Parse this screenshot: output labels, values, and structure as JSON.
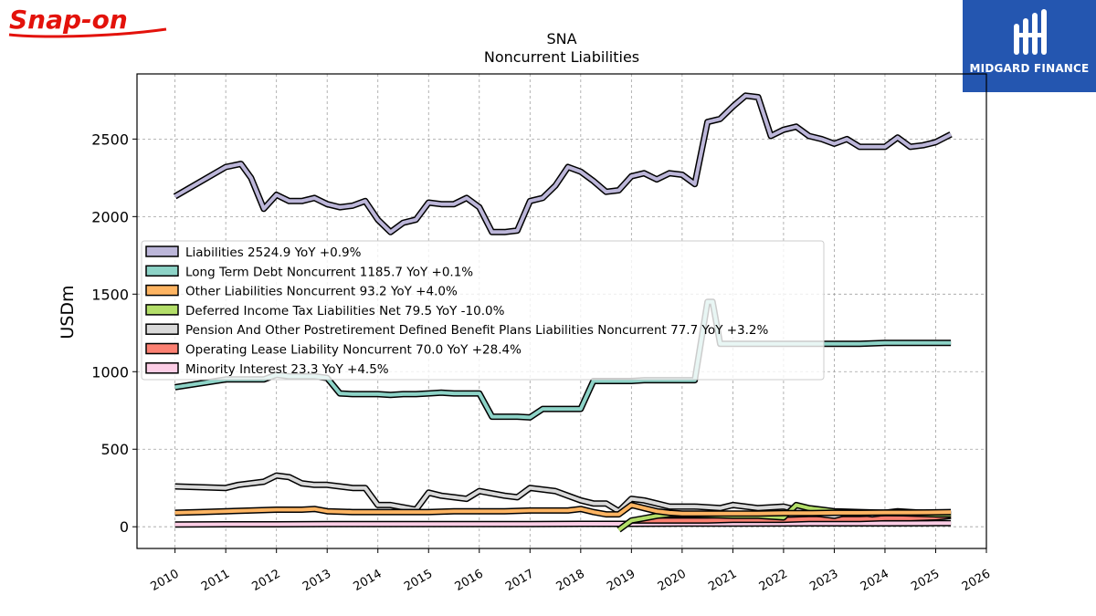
{
  "brand": {
    "logo_text": "Snap-on",
    "logo_color": "#e3120b"
  },
  "publisher": {
    "name": "MIDGARD FINANCE",
    "bg_color": "#2456b0"
  },
  "chart_data": {
    "type": "line",
    "title": "SNA",
    "subtitle": "Noncurrent  Liabilities",
    "xlabel": "",
    "ylabel": "USDm",
    "xlim": [
      2009.25,
      2026.0
    ],
    "ylim": [
      -140,
      2920
    ],
    "xticks": [
      "2010",
      "2011",
      "2012",
      "2013",
      "2014",
      "2015",
      "2016",
      "2017",
      "2018",
      "2019",
      "2020",
      "2021",
      "2022",
      "2023",
      "2024",
      "2025",
      "2026"
    ],
    "yticks": [
      "0",
      "500",
      "1000",
      "1500",
      "2000",
      "2500"
    ],
    "grid": true,
    "legend_position": "center-left",
    "series": [
      {
        "name": "Liabilities",
        "legend": "Liabilities  2524.9 YoY +0.9%",
        "color": "#bcb6d9",
        "x": [
          2010.0,
          2011.0,
          2011.3,
          2011.5,
          2011.75,
          2012.0,
          2012.25,
          2012.5,
          2012.75,
          2013.0,
          2013.25,
          2013.5,
          2013.75,
          2014.0,
          2014.25,
          2014.5,
          2014.75,
          2015.0,
          2015.25,
          2015.5,
          2015.75,
          2016.0,
          2016.25,
          2016.5,
          2016.75,
          2017.0,
          2017.25,
          2017.5,
          2017.75,
          2018.0,
          2018.25,
          2018.5,
          2018.75,
          2019.0,
          2019.25,
          2019.5,
          2019.75,
          2020.0,
          2020.25,
          2020.5,
          2020.75,
          2021.0,
          2021.25,
          2021.5,
          2021.75,
          2022.0,
          2022.25,
          2022.5,
          2022.75,
          2023.0,
          2023.25,
          2023.5,
          2023.75,
          2024.0,
          2024.25,
          2024.5,
          2024.75,
          2025.0,
          2025.3
        ],
        "y": [
          2130,
          2320,
          2340,
          2250,
          2050,
          2140,
          2100,
          2100,
          2120,
          2080,
          2060,
          2070,
          2100,
          1980,
          1900,
          1960,
          1980,
          2090,
          2080,
          2080,
          2120,
          2060,
          1900,
          1900,
          1910,
          2100,
          2120,
          2200,
          2320,
          2290,
          2230,
          2160,
          2170,
          2260,
          2280,
          2240,
          2280,
          2270,
          2210,
          2610,
          2630,
          2710,
          2780,
          2770,
          2520,
          2560,
          2580,
          2520,
          2500,
          2470,
          2500,
          2450,
          2450,
          2450,
          2510,
          2450,
          2460,
          2480,
          2530
        ]
      },
      {
        "name": "Long Term Debt Noncurrent",
        "legend": "Long Term Debt Noncurrent  1185.7 YoY +0.1%",
        "color": "#8dd3c7",
        "x": [
          2010.0,
          2011.0,
          2011.75,
          2012.0,
          2012.25,
          2012.5,
          2012.75,
          2013.0,
          2013.25,
          2013.5,
          2013.75,
          2014.0,
          2014.25,
          2014.5,
          2014.75,
          2015.0,
          2015.25,
          2015.5,
          2015.75,
          2016.0,
          2016.25,
          2016.5,
          2016.75,
          2017.0,
          2017.25,
          2017.5,
          2017.75,
          2018.0,
          2018.25,
          2018.5,
          2018.75,
          2019.0,
          2019.25,
          2019.5,
          2019.75,
          2020.0,
          2020.25,
          2020.5,
          2020.6,
          2020.75,
          2021.0,
          2021.25,
          2021.5,
          2021.75,
          2022.0,
          2022.5,
          2023.0,
          2023.5,
          2024.0,
          2024.5,
          2025.0,
          2025.3
        ],
        "y": [
          900,
          950,
          950,
          980,
          970,
          970,
          970,
          960,
          860,
          855,
          855,
          855,
          850,
          855,
          855,
          860,
          865,
          860,
          860,
          860,
          710,
          710,
          710,
          705,
          760,
          760,
          760,
          760,
          940,
          940,
          940,
          940,
          945,
          945,
          945,
          945,
          945,
          1450,
          1450,
          1180,
          1180,
          1180,
          1180,
          1180,
          1180,
          1180,
          1180,
          1180,
          1185,
          1185,
          1185,
          1186
        ]
      },
      {
        "name": "Other Liabilities Noncurrent",
        "legend": "Other Liabilities Noncurrent  93.2 YoY +4.0%",
        "color": "#fdb462",
        "x": [
          2010.0,
          2010.5,
          2011.0,
          2011.5,
          2012.0,
          2012.5,
          2012.75,
          2013.0,
          2013.5,
          2014.0,
          2014.5,
          2015.0,
          2015.5,
          2016.0,
          2016.5,
          2017.0,
          2017.5,
          2017.75,
          2018.0,
          2018.25,
          2018.5,
          2018.75,
          2019.0,
          2019.25,
          2019.5,
          2019.75,
          2020.0,
          2020.5,
          2021.0,
          2021.5,
          2022.0,
          2022.5,
          2023.0,
          2023.5,
          2024.0,
          2024.5,
          2025.0,
          2025.3
        ],
        "y": [
          90,
          95,
          100,
          105,
          110,
          110,
          115,
          100,
          95,
          95,
          95,
          95,
          100,
          100,
          100,
          105,
          105,
          105,
          115,
          95,
          80,
          80,
          140,
          120,
          100,
          90,
          85,
          85,
          85,
          85,
          88,
          88,
          90,
          90,
          92,
          92,
          93,
          95
        ]
      },
      {
        "name": "Deferred Income Tax Liabilities Net",
        "legend": "Deferred Income Tax Liabilities Net  79.5 YoY -10.0%",
        "color": "#b3de69",
        "x": [
          2018.75,
          2019.0,
          2019.25,
          2019.5,
          2019.75,
          2020.0,
          2020.5,
          2021.0,
          2021.5,
          2022.0,
          2022.25,
          2022.5,
          2022.75,
          2023.0,
          2023.5,
          2024.0,
          2024.5,
          2025.0,
          2025.3
        ],
        "y": [
          -20,
          40,
          55,
          70,
          80,
          80,
          75,
          70,
          70,
          60,
          140,
          120,
          110,
          100,
          95,
          90,
          85,
          80,
          80
        ]
      },
      {
        "name": "Pension And Other Postretirement Defined Benefit Plans Liabilities Noncurrent",
        "legend": "Pension And Other Postretirement Defined Benefit Plans Liabilities Noncurrent  77.7 YoY +3.2%",
        "color": "#d9d9d9",
        "x": [
          2010.0,
          2011.0,
          2011.25,
          2011.75,
          2012.0,
          2012.25,
          2012.5,
          2012.75,
          2013.0,
          2013.25,
          2013.5,
          2013.75,
          2014.0,
          2014.25,
          2014.75,
          2015.0,
          2015.25,
          2015.5,
          2015.75,
          2016.0,
          2016.5,
          2016.75,
          2017.0,
          2017.5,
          2017.75,
          2018.0,
          2018.25,
          2018.5,
          2018.75,
          2019.0,
          2019.25,
          2019.5,
          2019.75,
          2020.0,
          2020.25,
          2020.75,
          2021.0,
          2021.5,
          2022.0,
          2022.5,
          2023.0,
          2023.25,
          2023.5,
          2023.75,
          2024.0,
          2024.25,
          2024.5,
          2024.75,
          2025.0,
          2025.3
        ],
        "y": [
          260,
          250,
          270,
          290,
          330,
          320,
          280,
          270,
          270,
          260,
          250,
          250,
          140,
          140,
          110,
          220,
          200,
          190,
          180,
          230,
          200,
          190,
          250,
          230,
          200,
          170,
          150,
          150,
          100,
          180,
          170,
          150,
          130,
          130,
          130,
          120,
          140,
          120,
          130,
          90,
          70,
          90,
          90,
          80,
          90,
          100,
          95,
          90,
          80,
          78
        ]
      },
      {
        "name": "Operating Lease Liability Noncurrent",
        "legend": "Operating Lease Liability Noncurrent  70.0 YoY +28.4%",
        "color": "#fb8072",
        "x": [
          2019.0,
          2019.5,
          2020.0,
          2020.5,
          2021.0,
          2021.5,
          2022.0,
          2022.5,
          2023.0,
          2023.5,
          2024.0,
          2024.5,
          2025.0,
          2025.3
        ],
        "y": [
          40,
          40,
          40,
          40,
          45,
          45,
          45,
          50,
          50,
          50,
          55,
          55,
          60,
          70
        ]
      },
      {
        "name": "Minority Interest",
        "legend": "Minority Interest  23.3 YoY +4.5%",
        "color": "#fccde5",
        "x": [
          2010.0,
          2011.0,
          2012.0,
          2013.0,
          2014.0,
          2015.0,
          2016.0,
          2017.0,
          2018.0,
          2019.0,
          2020.0,
          2021.0,
          2022.0,
          2023.0,
          2024.0,
          2025.0,
          2025.3
        ],
        "y": [
          15,
          16,
          16,
          17,
          17,
          18,
          18,
          18,
          19,
          19,
          20,
          20,
          21,
          22,
          22,
          23,
          23
        ]
      }
    ]
  }
}
